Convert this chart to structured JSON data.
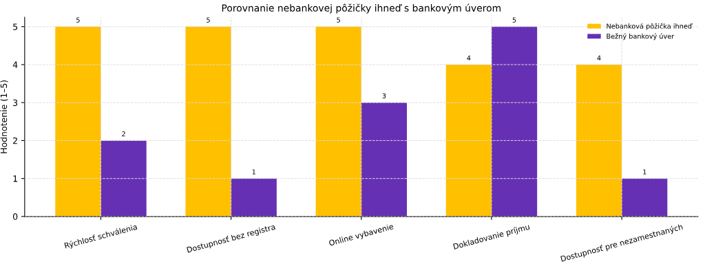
{
  "chart_data": {
    "type": "bar",
    "title": "Porovnanie nebankovej pôžičky ihneď s bankovým úverom",
    "ylabel": "Hodnotenie (1–5)",
    "categories": [
      "Rýchlosť schválenia",
      "Dostupnosť bez registra",
      "Online vybavenie",
      "Dokladovanie príjmu",
      "Dostupnosť pre nezamestnaných"
    ],
    "series": [
      {
        "name": "Nebanková pôžička ihneď",
        "color": "#ffc000",
        "values": [
          5,
          5,
          5,
          4,
          4
        ]
      },
      {
        "name": "Bežný bankový úver",
        "color": "#6630b4",
        "values": [
          2,
          1,
          3,
          5,
          1
        ]
      }
    ],
    "ylim": [
      0,
      5.25
    ],
    "yticks": [
      0,
      1,
      2,
      3,
      4,
      5
    ],
    "grid": true,
    "legend": "top right",
    "data_labels": true
  }
}
